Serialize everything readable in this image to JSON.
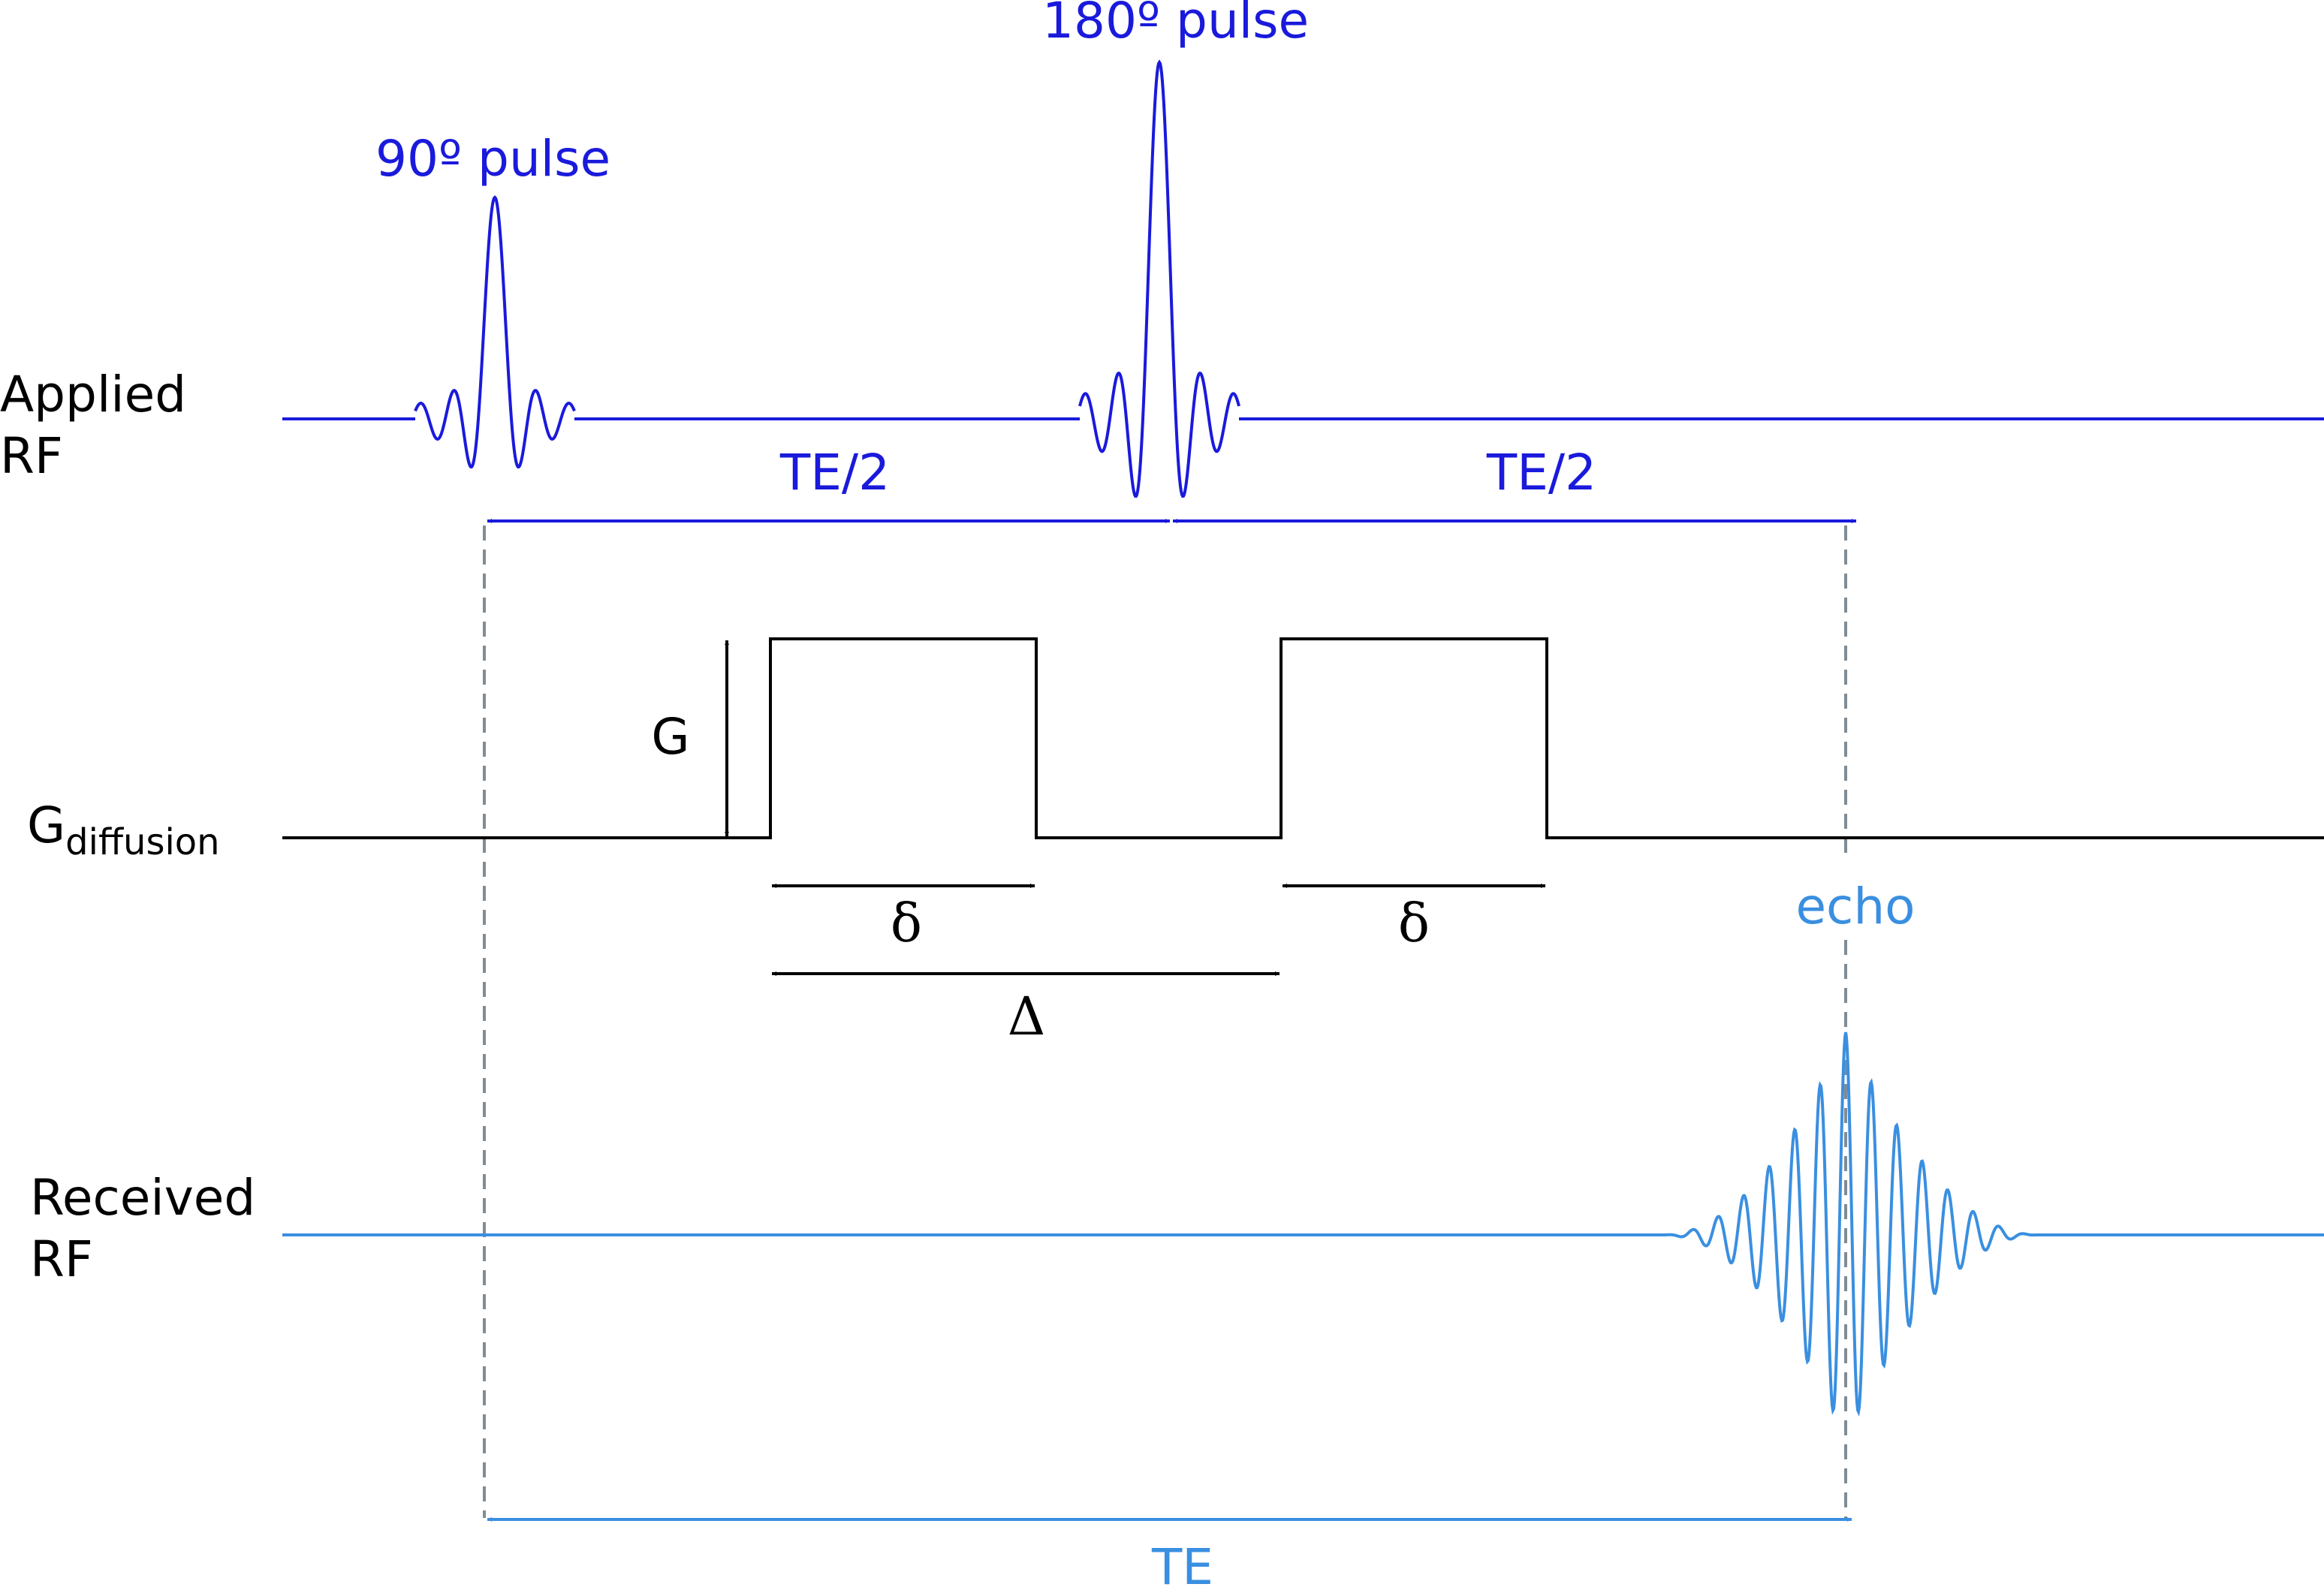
{
  "colors": {
    "applied": "#1a1adc",
    "received": "#3a8fe0",
    "gradient": "#000000",
    "guide": "#7f8c95"
  },
  "rows": {
    "applied_rf": [
      "Applied",
      "RF"
    ],
    "g_main": "G",
    "g_sub": "diffusion",
    "received_rf": [
      "Received",
      "RF"
    ]
  },
  "pulses": {
    "p90": "90º pulse",
    "p180": "180º pulse"
  },
  "intervals": {
    "te_half_1": "TE/2",
    "te_half_2": "TE/2",
    "te": "TE"
  },
  "gradient": {
    "amplitude": "G",
    "delta_small_1": "δ",
    "delta_small_2": "δ",
    "delta_big": "Δ"
  },
  "echo": "echo"
}
